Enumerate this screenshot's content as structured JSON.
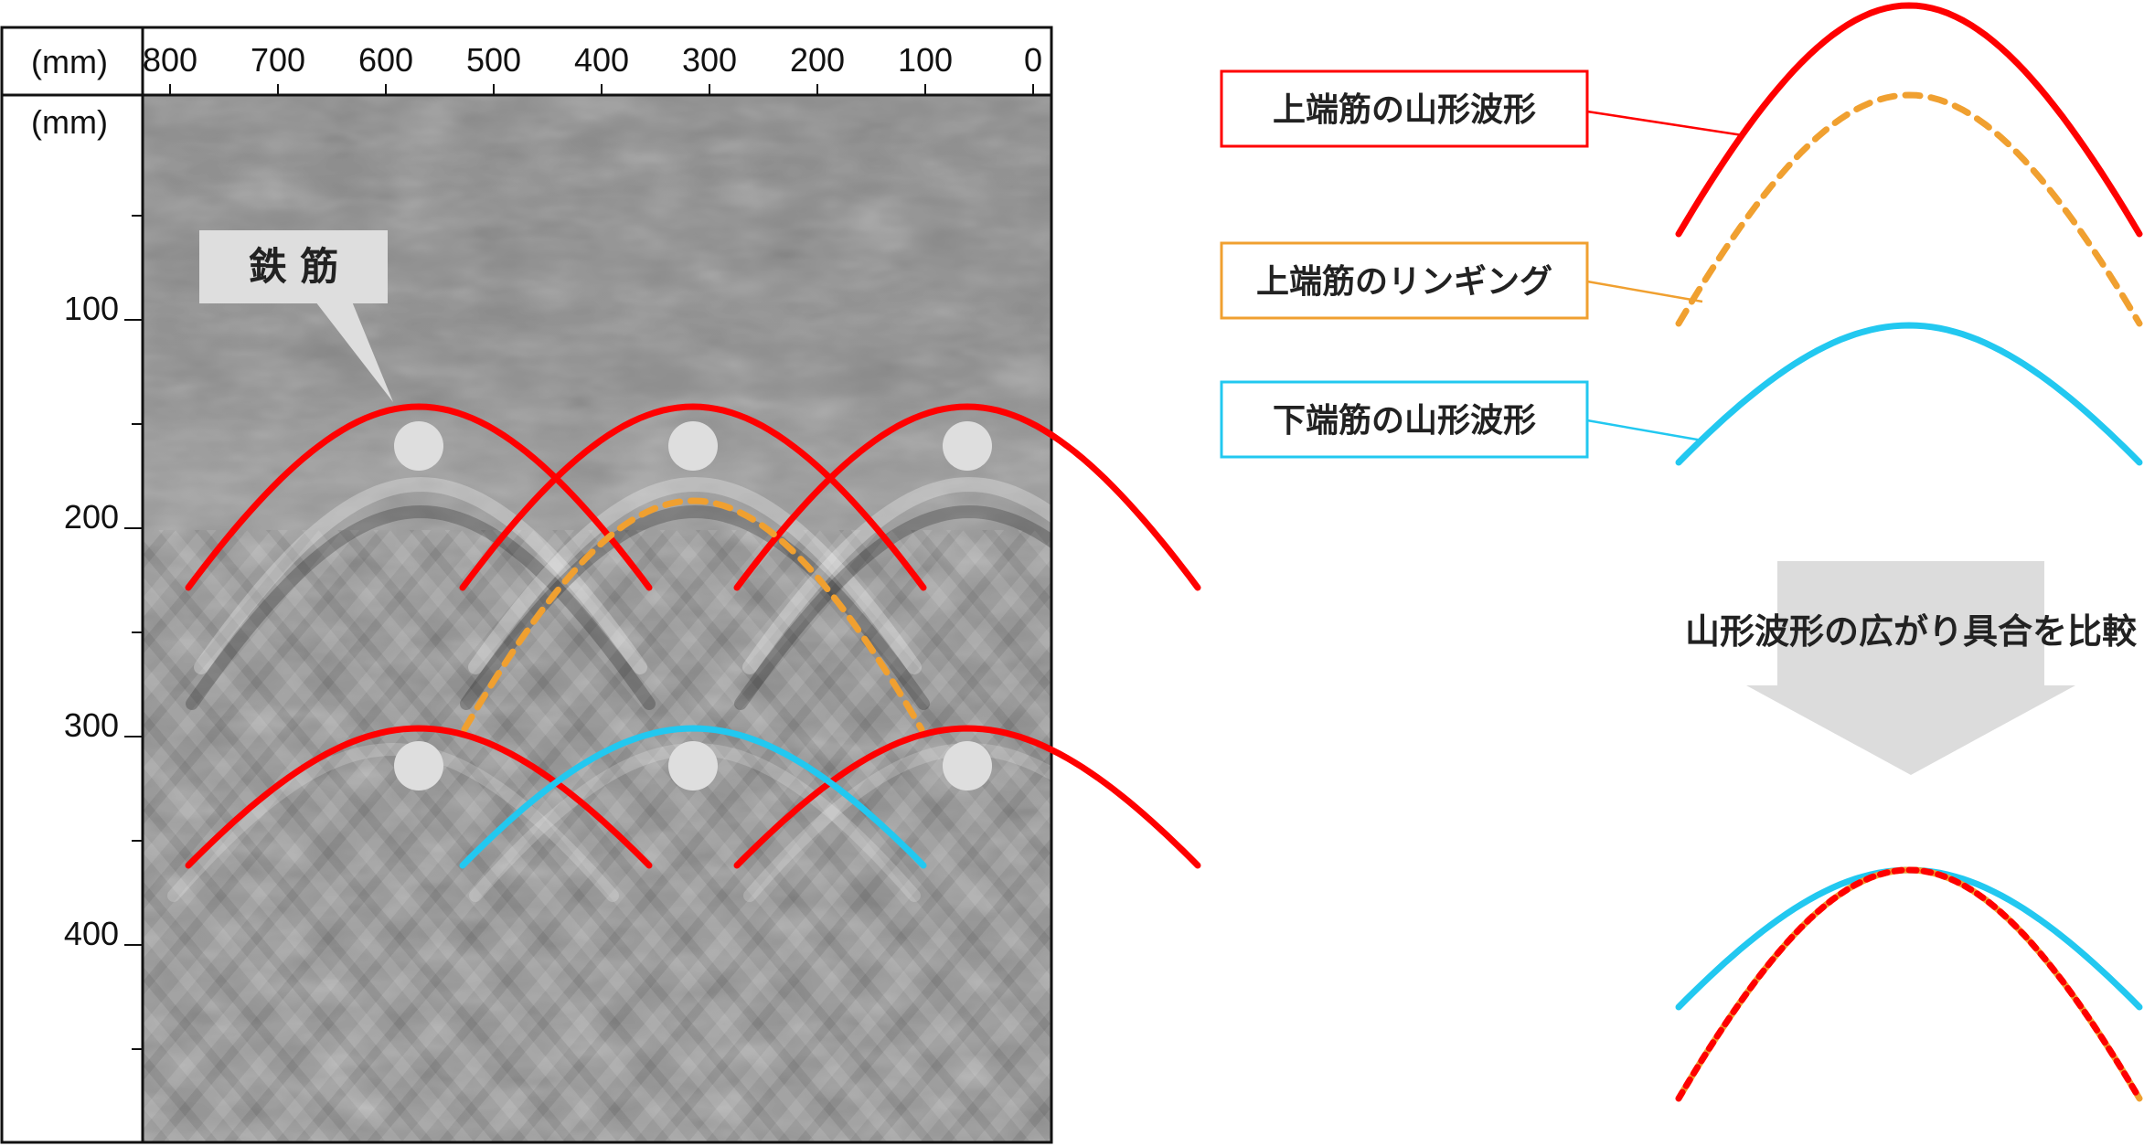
{
  "colors": {
    "top_bar": "#ff0000",
    "ringing": "#f0a030",
    "bottom_bar": "#22c8f0",
    "dot": "#dedede",
    "arrow": "#dcdcdc",
    "callout_bg": "#dedede"
  },
  "radar": {
    "x_unit": "(mm)",
    "y_unit": "(mm)",
    "x_ticks": [
      "800",
      "700",
      "600",
      "500",
      "400",
      "300",
      "200",
      "100",
      "0"
    ],
    "y_ticks": [
      "100",
      "200",
      "300",
      "400"
    ],
    "callout_label": "鉄 筋"
  },
  "legend": {
    "top_hyperbola": "上端筋の山形波形",
    "ringing": "上端筋のリンギング",
    "bottom_hyperbola": "下端筋の山形波形"
  },
  "compare": {
    "arrow_label": "山形波形の広がり具合を比較"
  }
}
